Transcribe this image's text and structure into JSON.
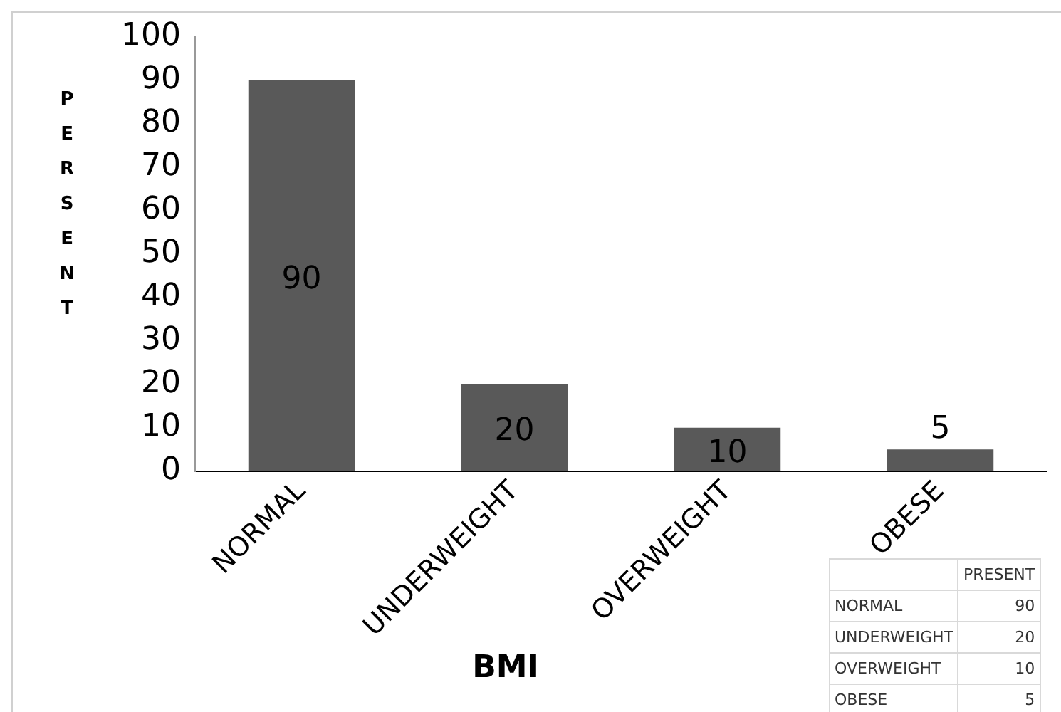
{
  "chart_data": {
    "type": "bar",
    "categories": [
      "NORMAL",
      "UNDERWEIGHT",
      "OVERWEIGHT",
      "OBESE"
    ],
    "values": [
      90,
      20,
      10,
      5
    ],
    "color": "#595959",
    "ylabel": "PERSENT",
    "xlabel": "BMI",
    "ylim": [
      0,
      100
    ],
    "yticks": [
      0,
      10,
      20,
      30,
      40,
      50,
      60,
      70,
      80,
      90,
      100
    ],
    "grid": false,
    "legend": false,
    "data_labels": true,
    "annotations": [
      "PRESENT",
      "90",
      "20",
      "10",
      "5"
    ]
  }
}
